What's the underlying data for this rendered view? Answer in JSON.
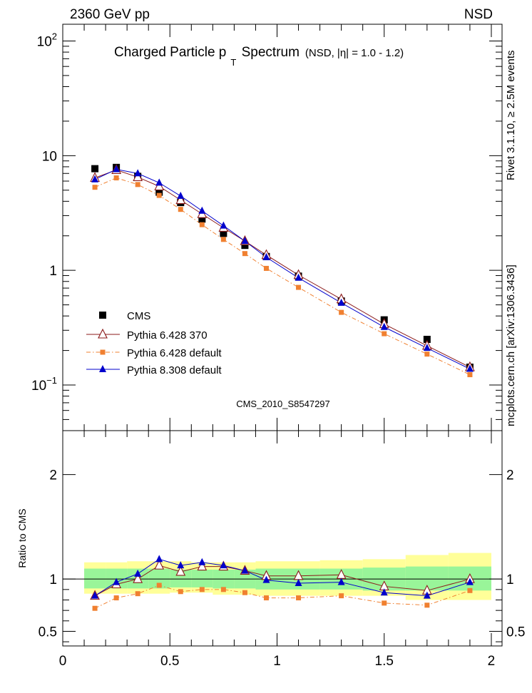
{
  "header": {
    "left": "2360 GeV pp",
    "right": "NSD"
  },
  "title": {
    "main": "Charged Particle p",
    "sub": "T",
    "main2": " Spectrum",
    "extra": "(NSD, |η| = 1.0 - 1.2)"
  },
  "side_labels": {
    "rivet": "Rivet 3.1.10, ≥ 2.5M events",
    "mcplots": "mcplots.cern.ch [arXiv:1306.3436]"
  },
  "analysis_id": "CMS_2010_S8547297",
  "ratio_ylabel": "Ratio to CMS",
  "colors": {
    "cms": "#000000",
    "p6_370": "#8b1a1a",
    "p6_def": "#f08030",
    "p8_def": "#0000cc",
    "band_inner": "#99f599",
    "band_outer": "#ffff99"
  },
  "chart_data": [
    {
      "type": "scatter",
      "yscale": "log",
      "xlim": [
        0,
        2.05
      ],
      "ylim": [
        0.04,
        140
      ],
      "ytick_labels": [
        {
          "value": 0.1,
          "base": "10",
          "exp": "−1"
        },
        {
          "value": 1,
          "base": "1",
          "exp": ""
        },
        {
          "value": 10,
          "base": "10",
          "exp": ""
        },
        {
          "value": 100,
          "base": "10",
          "exp": "2"
        }
      ],
      "x": [
        0.15,
        0.25,
        0.35,
        0.45,
        0.55,
        0.65,
        0.75,
        0.85,
        0.95,
        1.1,
        1.3,
        1.5,
        1.7,
        1.9
      ],
      "series": [
        {
          "key": "cms",
          "name": "CMS",
          "marker": "square",
          "values": [
            7.7,
            7.9,
            6.6,
            4.8,
            3.9,
            2.8,
            2.1,
            1.65,
            1.32,
            0.89,
            0.54,
            0.37,
            0.25,
            0.143
          ]
        },
        {
          "key": "p6_370",
          "name": "Pythia 6.428 370",
          "marker": "open-triangle",
          "values": [
            6.4,
            7.5,
            6.5,
            5.4,
            4.1,
            3.1,
            2.35,
            1.8,
            1.36,
            0.91,
            0.56,
            0.34,
            0.22,
            0.143
          ]
        },
        {
          "key": "p6_def",
          "name": "Pythia 6.428 default",
          "marker": "small-square",
          "values": [
            5.3,
            6.4,
            5.6,
            4.5,
            3.4,
            2.5,
            1.86,
            1.4,
            1.04,
            0.71,
            0.43,
            0.28,
            0.186,
            0.123
          ]
        },
        {
          "key": "p8_def",
          "name": "Pythia 8.308 default",
          "marker": "triangle",
          "values": [
            6.2,
            7.6,
            7.0,
            5.8,
            4.45,
            3.3,
            2.45,
            1.8,
            1.3,
            0.86,
            0.52,
            0.32,
            0.21,
            0.138
          ]
        }
      ]
    },
    {
      "type": "line",
      "xlim": [
        0,
        2.05
      ],
      "ylim": [
        0.36,
        2.42
      ],
      "xtick_labels": [
        {
          "value": 0,
          "label": "0"
        },
        {
          "value": 0.5,
          "label": "0.5"
        },
        {
          "value": 1,
          "label": "1"
        },
        {
          "value": 1.5,
          "label": "1.5"
        },
        {
          "value": 2,
          "label": "2"
        }
      ],
      "ytick_labels": [
        {
          "value": 0.5,
          "label": "0.5"
        },
        {
          "value": 1,
          "label": "1"
        },
        {
          "value": 2,
          "label": "2"
        }
      ],
      "reference_line": 1,
      "bands": {
        "edges": [
          0.1,
          0.2,
          0.3,
          0.4,
          0.5,
          0.6,
          0.7,
          0.8,
          0.9,
          1.0,
          1.2,
          1.4,
          1.6,
          1.8,
          2.0
        ],
        "inner_low": [
          0.91,
          0.91,
          0.91,
          0.91,
          0.92,
          0.92,
          0.91,
          0.91,
          0.9,
          0.9,
          0.9,
          0.89,
          0.89,
          0.89
        ],
        "inner_high": [
          1.1,
          1.1,
          1.1,
          1.1,
          1.09,
          1.09,
          1.09,
          1.09,
          1.1,
          1.1,
          1.1,
          1.11,
          1.12,
          1.12
        ],
        "outer_low": [
          0.86,
          0.86,
          0.86,
          0.86,
          0.87,
          0.87,
          0.85,
          0.85,
          0.84,
          0.84,
          0.84,
          0.84,
          0.8,
          0.8
        ],
        "outer_high": [
          1.16,
          1.16,
          1.17,
          1.17,
          1.17,
          1.16,
          1.16,
          1.16,
          1.17,
          1.17,
          1.18,
          1.19,
          1.23,
          1.25
        ]
      },
      "x": [
        0.15,
        0.25,
        0.35,
        0.45,
        0.55,
        0.65,
        0.75,
        0.85,
        0.95,
        1.1,
        1.3,
        1.5,
        1.7,
        1.9
      ],
      "series": [
        {
          "key": "p6_370",
          "name": "Pythia 6.428 370",
          "marker": "open-triangle",
          "values": [
            0.84,
            0.95,
            1.0,
            1.13,
            1.07,
            1.12,
            1.12,
            1.08,
            1.03,
            1.03,
            1.04,
            0.93,
            0.89,
            1.0
          ]
        },
        {
          "key": "p6_def",
          "name": "Pythia 6.428 default",
          "marker": "small-square",
          "values": [
            0.72,
            0.82,
            0.86,
            0.94,
            0.88,
            0.9,
            0.9,
            0.87,
            0.82,
            0.82,
            0.84,
            0.77,
            0.75,
            0.89
          ]
        },
        {
          "key": "p8_def",
          "name": "Pythia 8.308 default",
          "marker": "triangle",
          "values": [
            0.84,
            0.97,
            1.05,
            1.19,
            1.13,
            1.16,
            1.13,
            1.08,
            0.99,
            0.96,
            0.97,
            0.87,
            0.84,
            0.97
          ]
        }
      ]
    }
  ]
}
